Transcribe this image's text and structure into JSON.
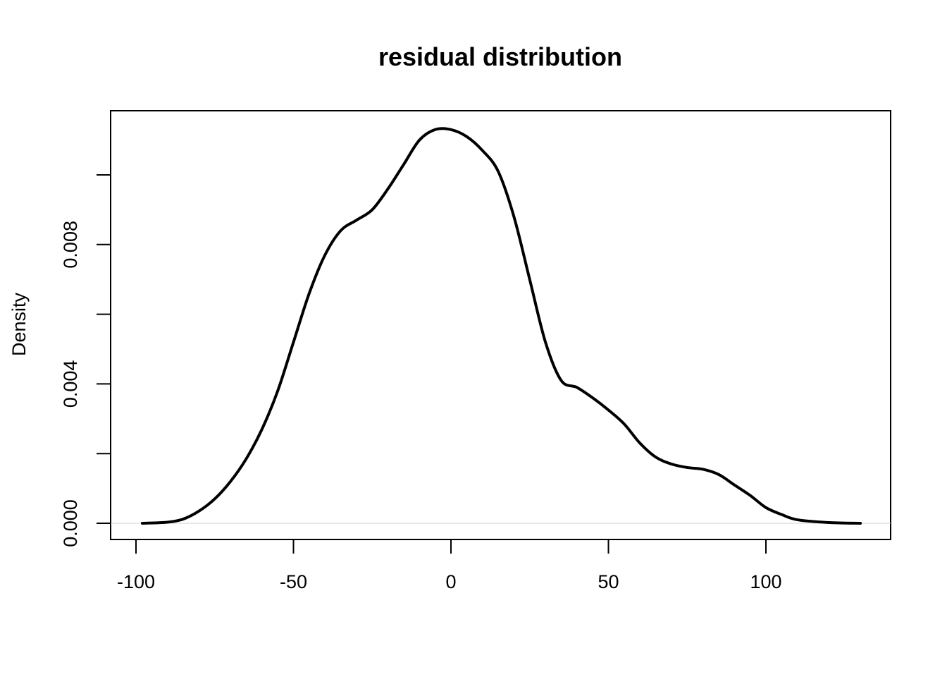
{
  "chart_data": {
    "type": "line",
    "title": "residual distribution",
    "xlabel": "",
    "ylabel": "Density",
    "xlim": [
      -100,
      130
    ],
    "ylim": [
      0.0,
      0.0114
    ],
    "x_ticks": [
      -100,
      -50,
      0,
      50,
      100
    ],
    "x_tick_labels": [
      "-100",
      "-50",
      "0",
      "50",
      "100"
    ],
    "y_ticks": [
      0.0,
      0.002,
      0.004,
      0.006,
      0.008,
      0.01
    ],
    "y_tick_labels": [
      "0.000",
      "",
      "0.004",
      "",
      "0.008",
      ""
    ],
    "grid": false,
    "zero_line": true,
    "line_color": "#000000",
    "zero_line_color": "#d0d0d0",
    "series": [
      {
        "x": [
          -98,
          -90,
          -85,
          -80,
          -75,
          -70,
          -65,
          -60,
          -55,
          -50,
          -45,
          -40,
          -35,
          -30,
          -25,
          -20,
          -15,
          -10,
          -5,
          0,
          5,
          10,
          15,
          20,
          25,
          30,
          35,
          40,
          45,
          50,
          55,
          60,
          65,
          70,
          75,
          80,
          85,
          90,
          95,
          100,
          105,
          110,
          120,
          130
        ],
        "y": [
          0.0,
          3e-05,
          0.00012,
          0.00035,
          0.0007,
          0.0012,
          0.00185,
          0.0027,
          0.0038,
          0.0052,
          0.0066,
          0.0077,
          0.0084,
          0.0087,
          0.009,
          0.0096,
          0.0103,
          0.011,
          0.0113,
          0.0113,
          0.0111,
          0.0107,
          0.0101,
          0.0088,
          0.007,
          0.0052,
          0.0041,
          0.0039,
          0.0036,
          0.00325,
          0.00285,
          0.0023,
          0.0019,
          0.0017,
          0.0016,
          0.00155,
          0.0014,
          0.0011,
          0.0008,
          0.00045,
          0.00025,
          0.0001,
          2e-05,
          0.0
        ]
      }
    ]
  }
}
